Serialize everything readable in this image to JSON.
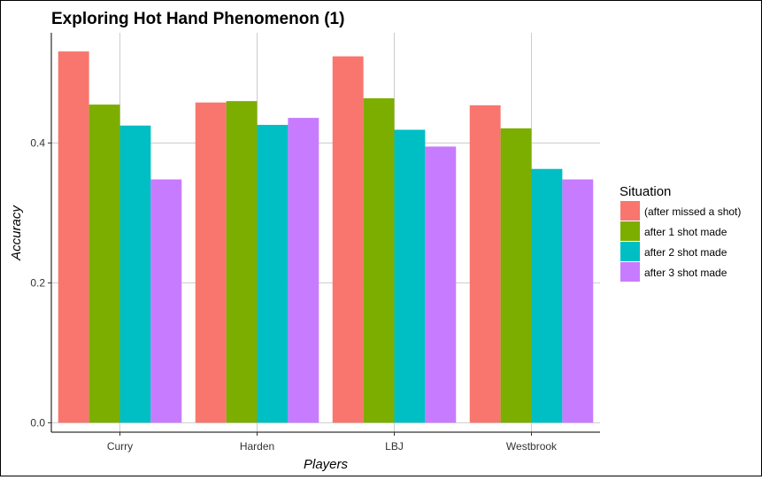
{
  "chart_data": {
    "type": "bar",
    "title": "Exploring Hot Hand Phenomenon (1)",
    "xlabel": "Players",
    "ylabel": "Accuracy",
    "categories": [
      "Curry",
      "Harden",
      "LBJ",
      "Westbrook"
    ],
    "ylim": [
      -0.0135,
      0.5577
    ],
    "yticks": [
      "0.0",
      "0.2",
      "0.4"
    ],
    "grid": true,
    "legend_position": "right",
    "legend_title": "Situation",
    "series": [
      {
        "name": "(after missed a shot)",
        "color": "#F8766D",
        "values": [
          0.531,
          0.458,
          0.524,
          0.454
        ]
      },
      {
        "name": "after 1 shot made",
        "color": "#7CAE00",
        "values": [
          0.455,
          0.46,
          0.464,
          0.421
        ]
      },
      {
        "name": "after 2 shot made",
        "color": "#00BFC4",
        "values": [
          0.425,
          0.426,
          0.419,
          0.363
        ]
      },
      {
        "name": "after 3 shot made",
        "color": "#C77CFF",
        "values": [
          0.348,
          0.436,
          0.395,
          0.348
        ]
      }
    ]
  }
}
